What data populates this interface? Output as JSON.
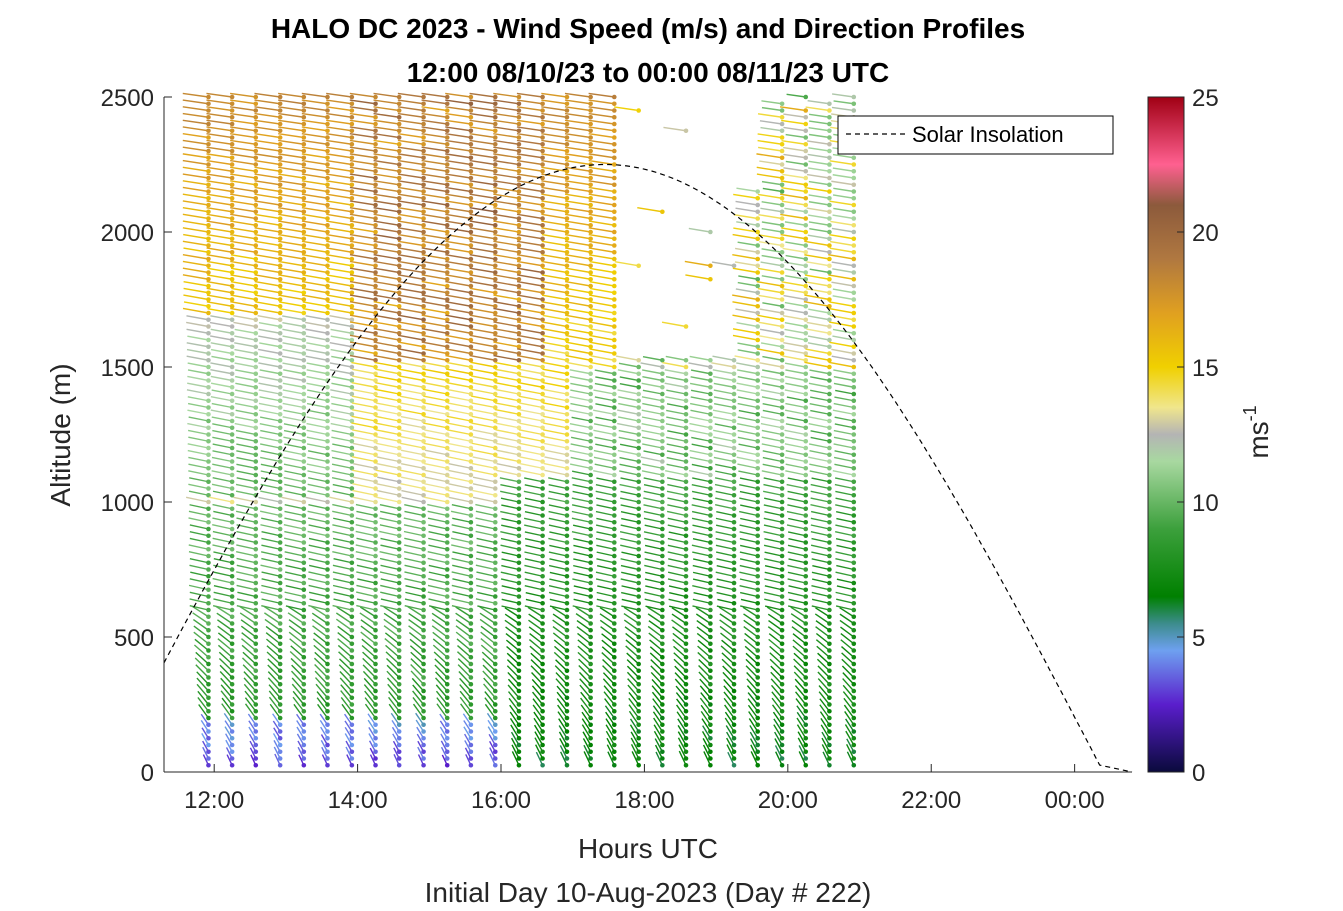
{
  "chart_data": {
    "type": "scatter",
    "title": "HALO DC 2023 - Wind Speed (m/s) and Direction Profiles",
    "subtitle": "12:00 08/10/23 to 00:00 08/11/23  UTC",
    "xlabel": "Hours UTC",
    "xlabel2": "Initial Day 10-Aug-2023 (Day # 222)",
    "ylabel": "Altitude (m)",
    "xlim": [
      11.3,
      24.8
    ],
    "ylim": [
      0,
      2500
    ],
    "xticks": [
      {
        "value": 12,
        "label": "12:00"
      },
      {
        "value": 14,
        "label": "14:00"
      },
      {
        "value": 16,
        "label": "16:00"
      },
      {
        "value": 18,
        "label": "18:00"
      },
      {
        "value": 20,
        "label": "20:00"
      },
      {
        "value": 22,
        "label": "22:00"
      },
      {
        "value": 24,
        "label": "00:00"
      }
    ],
    "yticks": [
      {
        "value": 0,
        "label": "0"
      },
      {
        "value": 500,
        "label": "500"
      },
      {
        "value": 1000,
        "label": "1000"
      },
      {
        "value": 1500,
        "label": "1500"
      },
      {
        "value": 2000,
        "label": "2000"
      },
      {
        "value": 2500,
        "label": "2500"
      }
    ],
    "colorbar": {
      "label": "ms",
      "label_exponent": "-1",
      "range": [
        0,
        25
      ],
      "ticks": [
        {
          "value": 0,
          "label": "0"
        },
        {
          "value": 5,
          "label": "5"
        },
        {
          "value": 10,
          "label": "10"
        },
        {
          "value": 15,
          "label": "15"
        },
        {
          "value": 20,
          "label": "20"
        },
        {
          "value": 25,
          "label": "25"
        }
      ],
      "stops": [
        {
          "v": 0,
          "c": "#0a0a3c"
        },
        {
          "v": 2.5,
          "c": "#5a1ecc"
        },
        {
          "v": 4.5,
          "c": "#6ea0f0"
        },
        {
          "v": 5.5,
          "c": "#3c8c8c"
        },
        {
          "v": 6.5,
          "c": "#008000"
        },
        {
          "v": 9,
          "c": "#3ca03c"
        },
        {
          "v": 11.5,
          "c": "#a8d8a0"
        },
        {
          "v": 12.5,
          "c": "#b4b4b4"
        },
        {
          "v": 13.5,
          "c": "#f0e68c"
        },
        {
          "v": 15,
          "c": "#f0d000"
        },
        {
          "v": 17,
          "c": "#e0a020"
        },
        {
          "v": 19,
          "c": "#b07840"
        },
        {
          "v": 21,
          "c": "#8c5a3c"
        },
        {
          "v": 22.5,
          "c": "#ff6090"
        },
        {
          "v": 25,
          "c": "#a00014"
        }
      ]
    },
    "legend": {
      "entries": [
        {
          "name": "Solar Insolation",
          "style": "dashed-black"
        }
      ],
      "position": "top-right"
    },
    "solar_insolation": {
      "sunrise_hour": 10.5,
      "sunset_hour": 24.4,
      "peak_altitude": 2250
    },
    "wind_profiles": {
      "profile_times": [
        11.92,
        12.25,
        12.58,
        12.92,
        13.25,
        13.58,
        13.92,
        14.25,
        14.58,
        14.92,
        15.25,
        15.58,
        15.92,
        16.25,
        16.58,
        16.92,
        17.25,
        17.58,
        17.92,
        18.25,
        18.58,
        18.92,
        19.25,
        19.58,
        19.92,
        20.25,
        20.58,
        20.92
      ],
      "altitude_range": [
        25,
        2500
      ],
      "altitude_step": 25,
      "low_speed_ms": 3,
      "mid_speed_ms": 8,
      "high_speed_ms": 15,
      "transition_altitude_m": 1000,
      "gap_region": {
        "x": [
          17.6,
          19.4
        ],
        "y": [
          1550,
          2500
        ]
      }
    }
  }
}
